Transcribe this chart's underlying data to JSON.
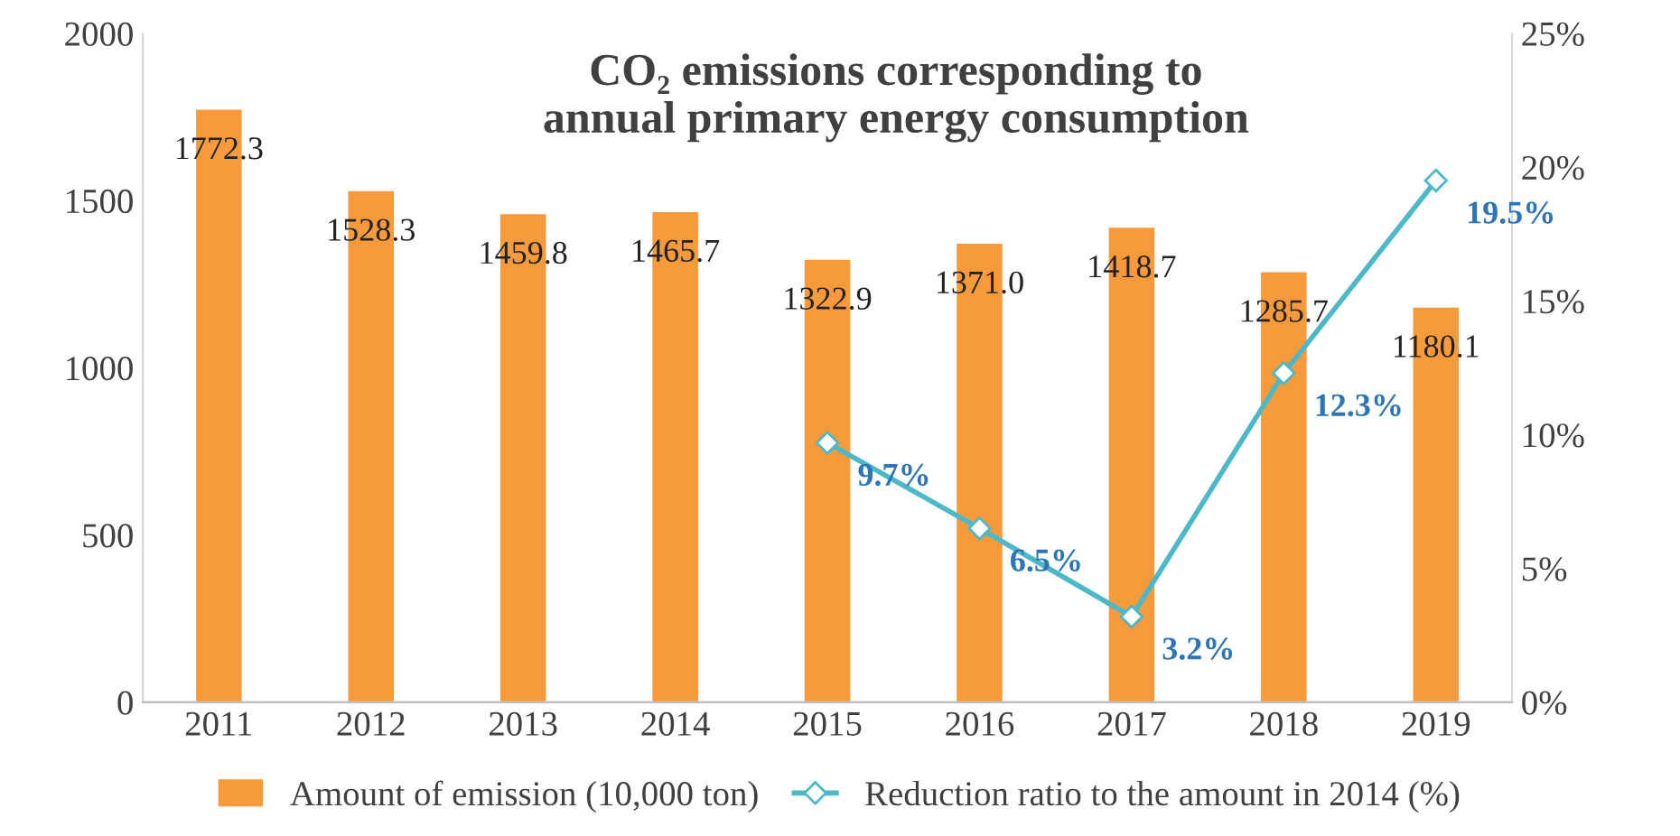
{
  "chart_data": {
    "type": "bar",
    "title": "CO₂ emissions corresponding to\nannual primary energy consumption",
    "categories": [
      "2011",
      "2012",
      "2013",
      "2014",
      "2015",
      "2016",
      "2017",
      "2018",
      "2019"
    ],
    "series": [
      {
        "name": "Amount of emission (10,000 ton)",
        "color": "#f79a3c",
        "values": [
          1772.3,
          1528.3,
          1459.8,
          1465.7,
          1322.9,
          1371.0,
          1418.7,
          1285.7,
          1180.1
        ],
        "value_labels": [
          "1772.3",
          "1528.3",
          "1459.8",
          "1465.7",
          "1322.9",
          "1371.0",
          "1418.7",
          "1285.7",
          "1180.1"
        ]
      },
      {
        "name": "Reduction ratio to the amount in 2014 (%)",
        "type": "line",
        "axis": "y2",
        "color": "#4cb8c8",
        "marker": "diamond",
        "values": [
          null,
          null,
          null,
          null,
          9.7,
          6.5,
          3.2,
          12.3,
          19.5
        ],
        "value_labels": [
          null,
          null,
          null,
          null,
          "9.7%",
          "6.5%",
          "3.2%",
          "12.3%",
          "19.5%"
        ]
      }
    ],
    "ylim": [
      0,
      2000
    ],
    "yticks": [
      0,
      500,
      1000,
      1500,
      2000
    ],
    "y2lim": [
      0,
      25
    ],
    "y2ticks": [
      {
        "value": 0,
        "label": "0%"
      },
      {
        "value": 5,
        "label": "5%"
      },
      {
        "value": 10,
        "label": "10%"
      },
      {
        "value": 15,
        "label": "15%"
      },
      {
        "value": 20,
        "label": "20%"
      },
      {
        "value": 25,
        "label": "25%"
      }
    ],
    "grid": false,
    "legend": "bottom"
  }
}
